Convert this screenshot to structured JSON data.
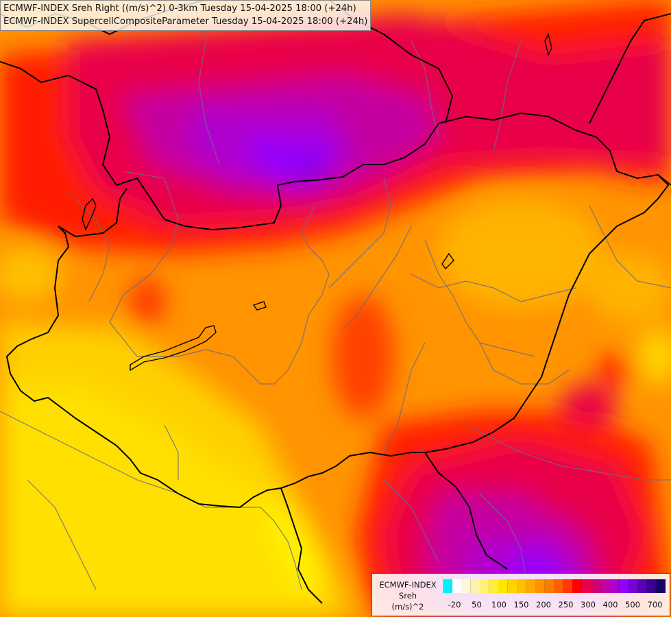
{
  "header": {
    "line1": "ECMWF-INDEX Sreh Right ((m/s)^2) 0-3km Tuesday 15-04-2025 18:00 (+24h)",
    "line2": "ECMWF-INDEX SupercellCompositeParameter Tuesday 15-04-2025 18:00 (+24h)"
  },
  "legend": {
    "source": "ECMWF-INDEX",
    "variable": "Sreh",
    "unit": "(m/s)^2",
    "colors": [
      "#00f0ff",
      "#ffffff",
      "#fff7d6",
      "#fff3a6",
      "#fff176",
      "#ffee40",
      "#ffe600",
      "#ffd200",
      "#ffbe00",
      "#ffa800",
      "#ff9100",
      "#ff7a00",
      "#ff5e00",
      "#ff3a00",
      "#ff0000",
      "#e8004a",
      "#d4006e",
      "#c400a0",
      "#b000d0",
      "#9400ff",
      "#7a00d8",
      "#5a00b4",
      "#3c0090",
      "#1a006a"
    ],
    "ticks": [
      "-20",
      "50",
      "100",
      "150",
      "200",
      "250",
      "300",
      "400",
      "500",
      "700"
    ]
  },
  "icons": [
    "country-border",
    "region-border",
    "lake-outline"
  ]
}
